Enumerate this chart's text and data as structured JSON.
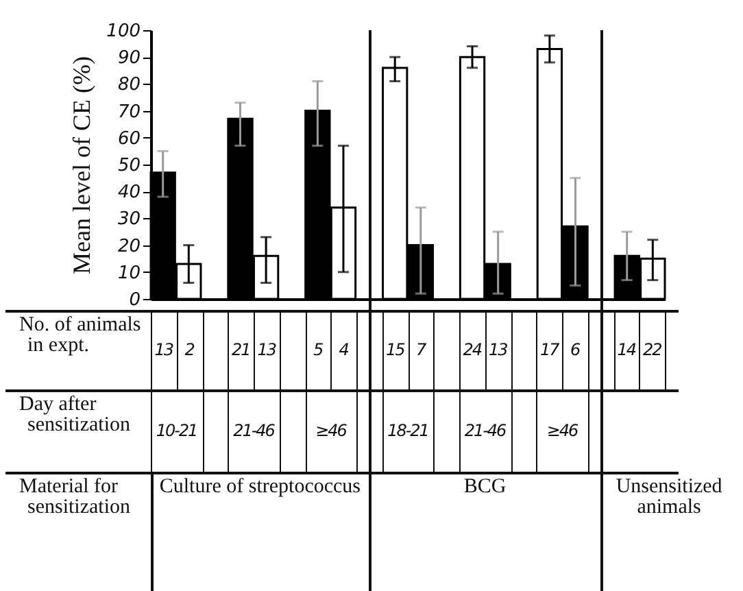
{
  "chart_data": {
    "type": "bar",
    "ylabel": "Mean level of CE (%)",
    "categories": [
      null,
      null,
      null,
      null,
      null,
      null,
      null,
      null,
      null,
      null,
      null,
      null,
      null,
      null,
      null,
      null,
      null,
      null,
      null,
      null
    ],
    "values": [
      47,
      13,
      null,
      67,
      16,
      null,
      70,
      34,
      null,
      86,
      20,
      null,
      90,
      13,
      null,
      93,
      27,
      null,
      16,
      15
    ],
    "colors": [
      "#000000",
      "#ffffff",
      null,
      "#000000",
      "#ffffff",
      null,
      "#000000",
      "#ffffff",
      null,
      "#ffffff",
      "#000000",
      null,
      "#ffffff",
      "#000000",
      null,
      "#ffffff",
      "#000000",
      null,
      "#000000",
      "#ffffff"
    ],
    "errors": [
      [
        38,
        55
      ],
      [
        6,
        20
      ],
      null,
      [
        57,
        73
      ],
      [
        6,
        23
      ],
      null,
      [
        57,
        81
      ],
      [
        10,
        57
      ],
      null,
      [
        81,
        90
      ],
      [
        2,
        34
      ],
      null,
      [
        86,
        94
      ],
      [
        2,
        25
      ],
      null,
      [
        88,
        98
      ],
      [
        5,
        45
      ],
      null,
      [
        7,
        25
      ],
      [
        7,
        22
      ]
    ],
    "ylim": [
      0,
      100
    ],
    "yticks": [
      0,
      10,
      20,
      30,
      40,
      50,
      60,
      70,
      80,
      90,
      100
    ],
    "grid": false,
    "legend": false,
    "tick_labels": "y",
    "annotations": [
      "No. of animals in expt.",
      "13",
      "2",
      "21",
      "13",
      "5",
      "4",
      "15",
      "7",
      "24",
      "13",
      "17",
      "6",
      "14",
      "22",
      "Day after sensitization",
      "10-21",
      "21-46",
      "≥46",
      "18-21",
      "21-46",
      "≥46",
      "Material for sensitization",
      "Culture of streptococcus",
      "BCG",
      "Unsensitized animals"
    ]
  }
}
